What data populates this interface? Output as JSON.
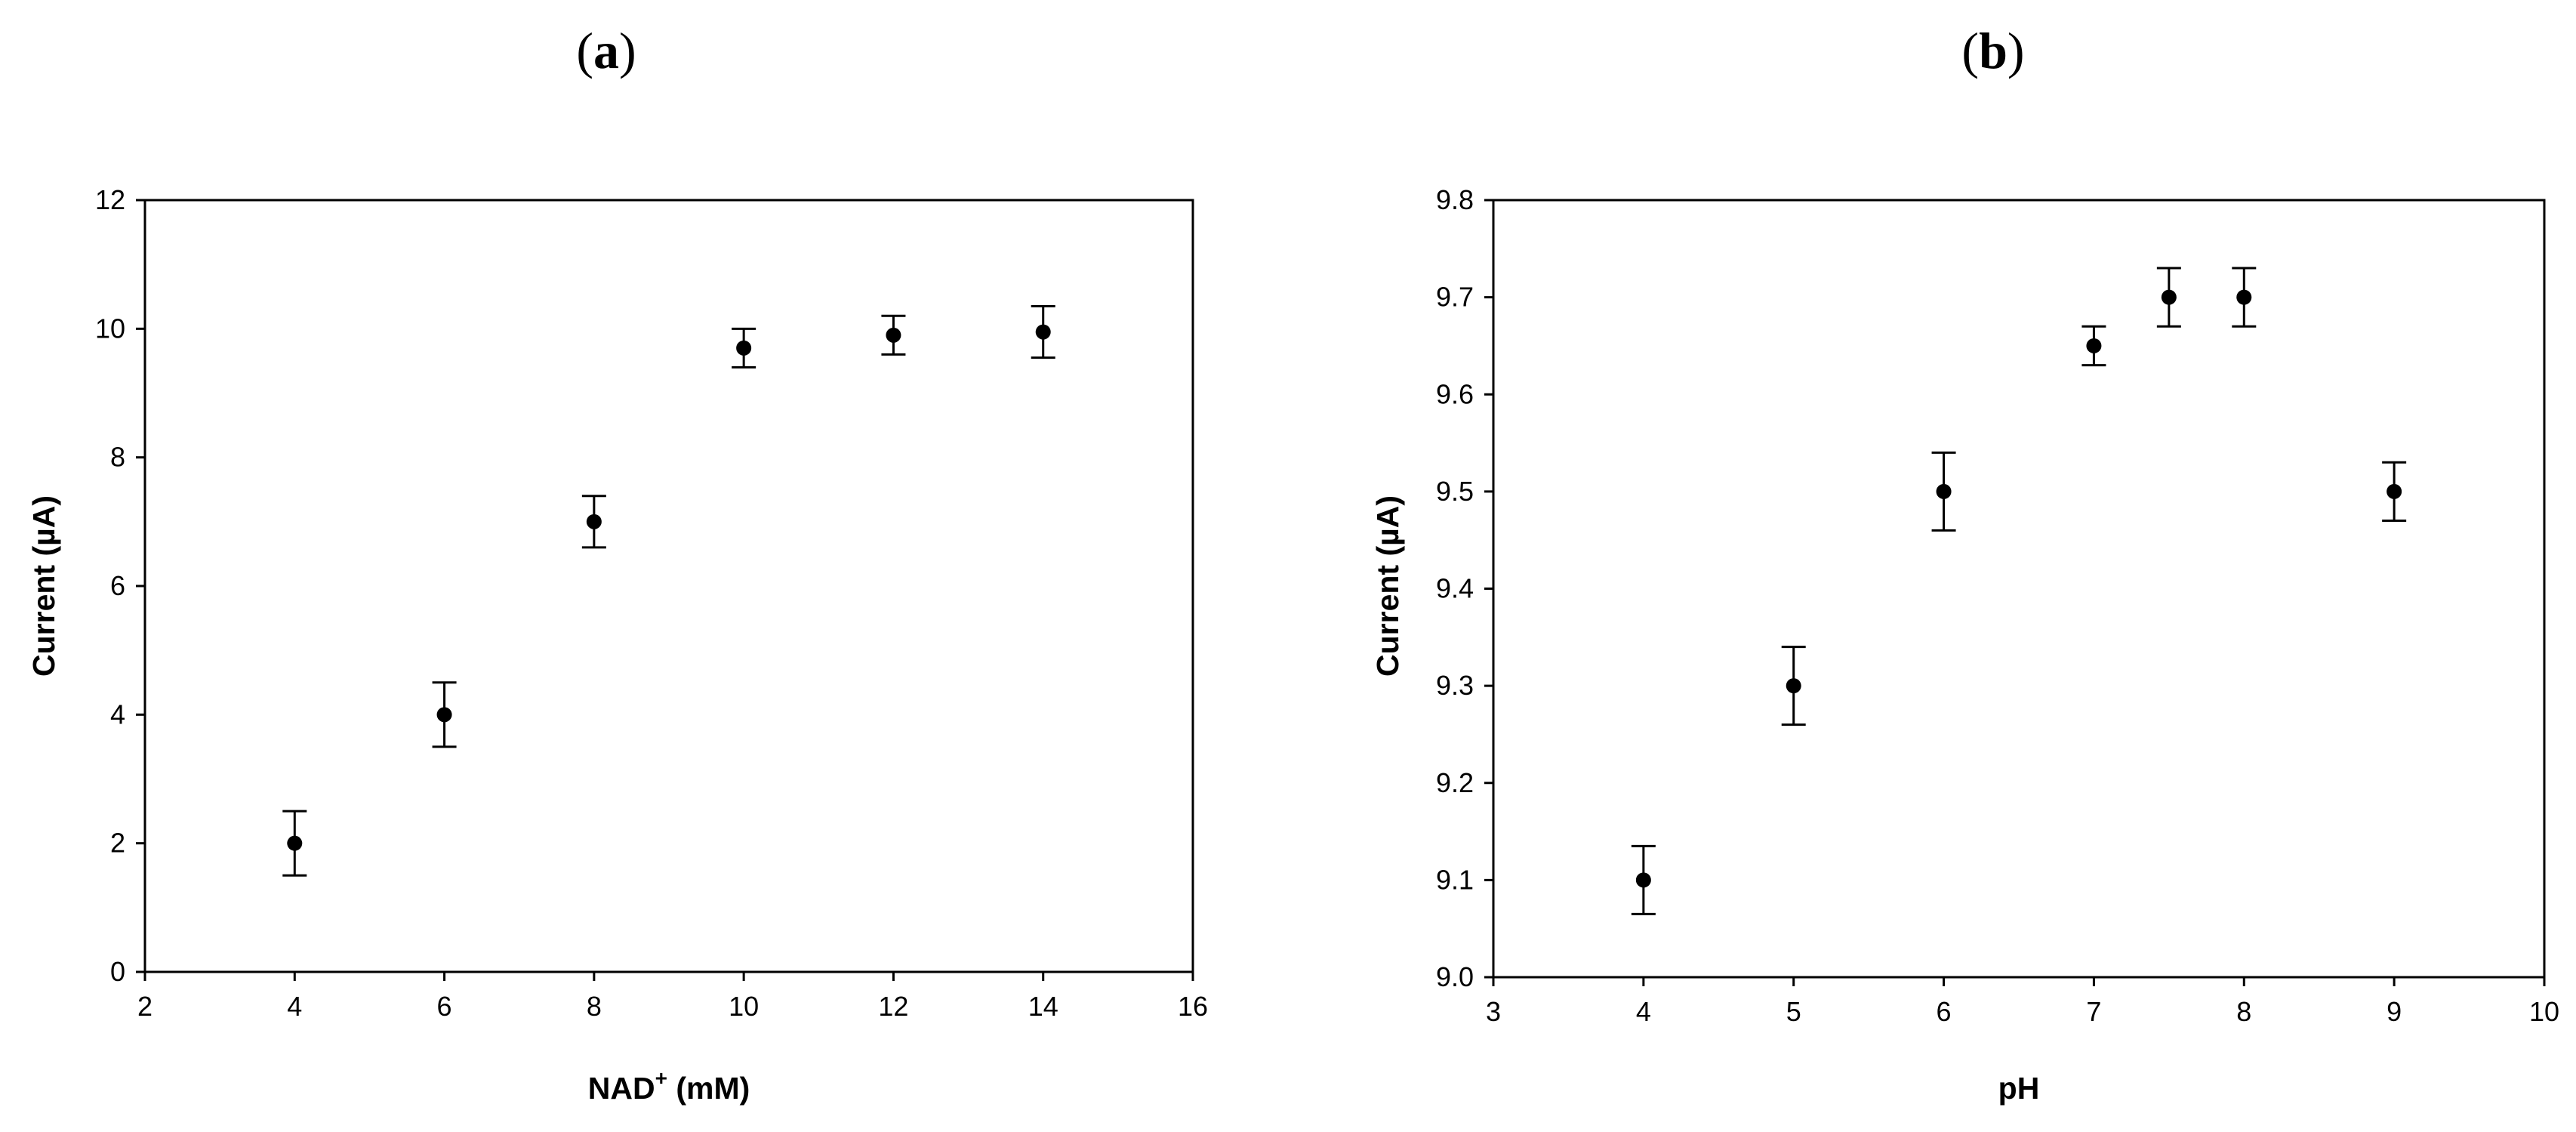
{
  "chart_data": [
    {
      "type": "scatter",
      "panel_label": "a",
      "xlabel": "NAD",
      "xlabel_superscript": "+",
      "xlabel_suffix": " (mM)",
      "ylabel": "Current (µA)",
      "xlim": [
        2,
        16
      ],
      "ylim": [
        0,
        12
      ],
      "xticks": [
        "2",
        "4",
        "6",
        "8",
        "10",
        "12",
        "14",
        "16"
      ],
      "yticks": [
        "0",
        "2",
        "4",
        "6",
        "8",
        "10",
        "12"
      ],
      "grid": false,
      "points": [
        {
          "x": 4,
          "y": 2.0,
          "err": 0.5
        },
        {
          "x": 6,
          "y": 4.0,
          "err": 0.5
        },
        {
          "x": 8,
          "y": 7.0,
          "err": 0.4
        },
        {
          "x": 10,
          "y": 9.7,
          "err": 0.3
        },
        {
          "x": 12,
          "y": 9.9,
          "err": 0.3
        },
        {
          "x": 14,
          "y": 9.95,
          "err": 0.4
        }
      ]
    },
    {
      "type": "scatter",
      "panel_label": "b",
      "xlabel": "pH",
      "ylabel": "Current (µA)",
      "xlim": [
        3,
        10
      ],
      "ylim": [
        9.0,
        9.8
      ],
      "xticks": [
        "3",
        "4",
        "5",
        "6",
        "7",
        "8",
        "9",
        "10"
      ],
      "yticks": [
        "9.0",
        "9.1",
        "9.2",
        "9.3",
        "9.4",
        "9.5",
        "9.6",
        "9.7",
        "9.8"
      ],
      "grid": false,
      "points": [
        {
          "x": 4,
          "y": 9.1,
          "err": 0.035
        },
        {
          "x": 5,
          "y": 9.3,
          "err": 0.04
        },
        {
          "x": 6,
          "y": 9.5,
          "err": 0.04
        },
        {
          "x": 7,
          "y": 9.65,
          "err": 0.02
        },
        {
          "x": 7.5,
          "y": 9.7,
          "err": 0.03
        },
        {
          "x": 8,
          "y": 9.7,
          "err": 0.03
        },
        {
          "x": 9,
          "y": 9.5,
          "err": 0.03
        }
      ]
    }
  ]
}
